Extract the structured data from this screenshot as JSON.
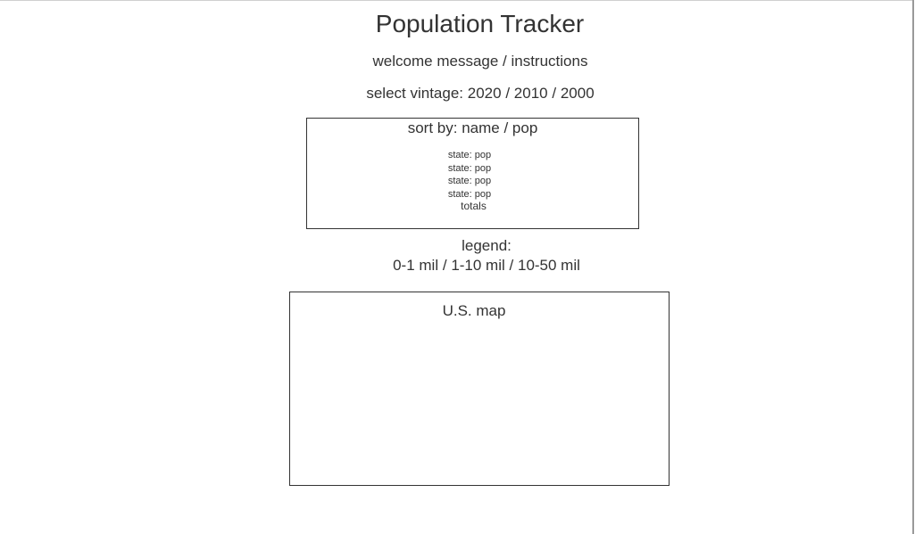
{
  "header": {
    "title": "Population Tracker",
    "welcome": "welcome message / instructions"
  },
  "vintage": {
    "label": "select vintage:",
    "options": [
      "2020",
      "2010",
      "2000"
    ]
  },
  "sort": {
    "label": "sort by:",
    "options": [
      "name",
      "pop"
    ],
    "rows": [
      "state: pop",
      "state: pop",
      "state: pop",
      "state: pop"
    ],
    "totals": "totals"
  },
  "legend": {
    "label": "legend:",
    "ranges": [
      "0-1 mil",
      "1-10 mil",
      "10-50 mil"
    ]
  },
  "map": {
    "label": "U.S. map"
  },
  "separator": "/"
}
